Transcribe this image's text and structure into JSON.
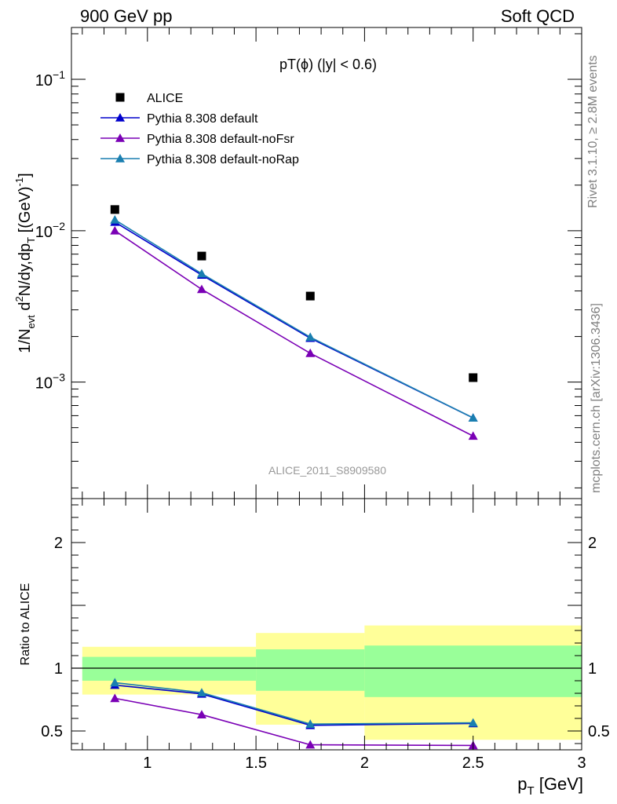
{
  "header": {
    "left": "900 GeV pp",
    "right": "Soft QCD"
  },
  "side_labels": {
    "rivet": "Rivet 3.1.10, ≥ 2.8M events",
    "mcplots": "mcplots.cern.ch [arXiv:1306.3436]"
  },
  "analysis_id": "ALICE_2011_S8909580",
  "chart_data": [
    {
      "type": "scatter",
      "panel": "main",
      "title": "pT(ϕ) (|y| < 0.6)",
      "xlabel": "p_T [GeV]",
      "ylabel": "1/N_evt d²N/dy,dp_T [(GeV)⁻¹]",
      "ylabel_parts": {
        "a": "1/N",
        "a_sub": "evt",
        "b": " d",
        "b_sup": "2",
        "c": "N/dy,dp",
        "c_sub": "T",
        "d": " [(GeV)",
        "d_sup": "-1",
        "e": "]"
      },
      "yscale": "log",
      "xlim": [
        0.65,
        3.0
      ],
      "ylim": [
        0.00017,
        0.22
      ],
      "ytick_labels": [
        {
          "base": "10",
          "exp": "−3",
          "value": 0.001
        },
        {
          "base": "10",
          "exp": "−2",
          "value": 0.01
        },
        {
          "base": "10",
          "exp": "−1",
          "value": 0.1
        }
      ],
      "legend_position": "top-left",
      "series": [
        {
          "name": "ALICE",
          "color": "#000000",
          "marker": "square",
          "line": false,
          "x": [
            0.85,
            1.25,
            1.75,
            2.5
          ],
          "y": [
            0.0138,
            0.0068,
            0.0037,
            0.00107
          ]
        },
        {
          "name": "Pythia 8.308 default",
          "color": "#0000cc",
          "marker": "triangle",
          "line": true,
          "x": [
            0.85,
            1.25,
            1.75,
            2.5
          ],
          "y": [
            0.0114,
            0.0051,
            0.00195,
            0.00058
          ]
        },
        {
          "name": "Pythia 8.308 default-noFsr",
          "color": "#7a00b5",
          "marker": "triangle",
          "line": true,
          "x": [
            0.85,
            1.25,
            1.75,
            2.5
          ],
          "y": [
            0.01,
            0.0041,
            0.00155,
            0.00044
          ]
        },
        {
          "name": "Pythia 8.308 default-noRap",
          "color": "#1a7fb0",
          "marker": "triangle",
          "line": true,
          "x": [
            0.85,
            1.25,
            1.75,
            2.5
          ],
          "y": [
            0.0118,
            0.0052,
            0.00198,
            0.00058
          ]
        }
      ]
    },
    {
      "type": "line",
      "panel": "ratio",
      "xlabel": "p_T [GeV]",
      "ylabel": "Ratio to ALICE",
      "xlim": [
        0.65,
        3.0
      ],
      "ylim": [
        0.35,
        2.35
      ],
      "xtick_labels": [
        "1",
        "1.5",
        "2",
        "2.5",
        "3"
      ],
      "xtick_values": [
        1,
        1.5,
        2,
        2.5,
        3
      ],
      "ytick_labels": [
        "0.5",
        "1",
        "2"
      ],
      "ytick_values": [
        0.5,
        1,
        2
      ],
      "bands": [
        {
          "x": [
            0.7,
            1.5
          ],
          "green": [
            0.9,
            1.09
          ],
          "yellow": [
            0.79,
            1.17
          ]
        },
        {
          "x": [
            1.5,
            2.0
          ],
          "green": [
            0.82,
            1.15
          ],
          "yellow": [
            0.55,
            1.28
          ]
        },
        {
          "x": [
            2.0,
            3.0
          ],
          "green": [
            0.77,
            1.18
          ],
          "yellow": [
            0.43,
            1.34
          ]
        }
      ],
      "band_colors": {
        "green": "#99ff99",
        "yellow": "#ffff99"
      },
      "series": [
        {
          "name": "Pythia 8.308 default",
          "color": "#0000cc",
          "x": [
            0.85,
            1.25,
            1.75,
            2.5
          ],
          "y": [
            0.865,
            0.795,
            0.545,
            0.56
          ]
        },
        {
          "name": "Pythia 8.308 default-noFsr",
          "color": "#7a00b5",
          "x": [
            0.85,
            1.25,
            1.75,
            2.5
          ],
          "y": [
            0.76,
            0.63,
            0.39,
            0.385
          ]
        },
        {
          "name": "Pythia 8.308 default-noRap",
          "color": "#1a7fb0",
          "x": [
            0.85,
            1.25,
            1.75,
            2.5
          ],
          "y": [
            0.885,
            0.805,
            0.555,
            0.565
          ]
        }
      ]
    }
  ]
}
